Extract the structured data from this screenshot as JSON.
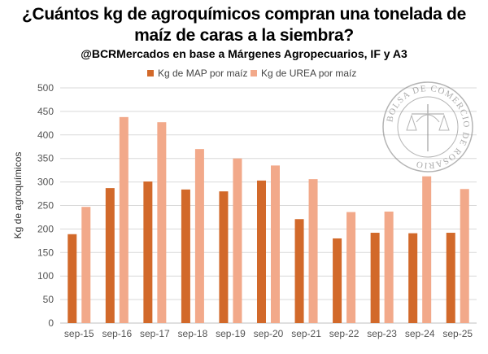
{
  "title_line1": "¿Cuántos kg de agroquímicos compran una tonelada de",
  "title_line2": "maíz de caras a la siembra?",
  "subtitle": "@BCRMercados en base a Márgenes Agropecuarios, IF y A3",
  "logo_text": "BOLSA DE COMERCIO DE ROSARIO",
  "colors": {
    "map": "#d2692a",
    "urea": "#f2a98a",
    "grid": "#d9d9d9"
  },
  "chart_data": {
    "type": "bar",
    "categories": [
      "sep-15",
      "sep-16",
      "sep-17",
      "sep-18",
      "sep-19",
      "sep-20",
      "sep-21",
      "sep-22",
      "sep-23",
      "sep-24",
      "sep-25"
    ],
    "series": [
      {
        "name": "Kg de MAP por maíz",
        "values": [
          189,
          287,
          301,
          284,
          280,
          303,
          221,
          180,
          192,
          191,
          192
        ]
      },
      {
        "name": "Kg de UREA por maíz",
        "values": [
          247,
          438,
          427,
          370,
          350,
          335,
          306,
          236,
          237,
          312,
          285
        ]
      }
    ],
    "ylabel": "Kg de agroquímicos",
    "ylim": [
      0,
      500
    ],
    "yticks": [
      0,
      50,
      100,
      150,
      200,
      250,
      300,
      350,
      400,
      450,
      500
    ],
    "grid": true,
    "legend": "top-center"
  }
}
